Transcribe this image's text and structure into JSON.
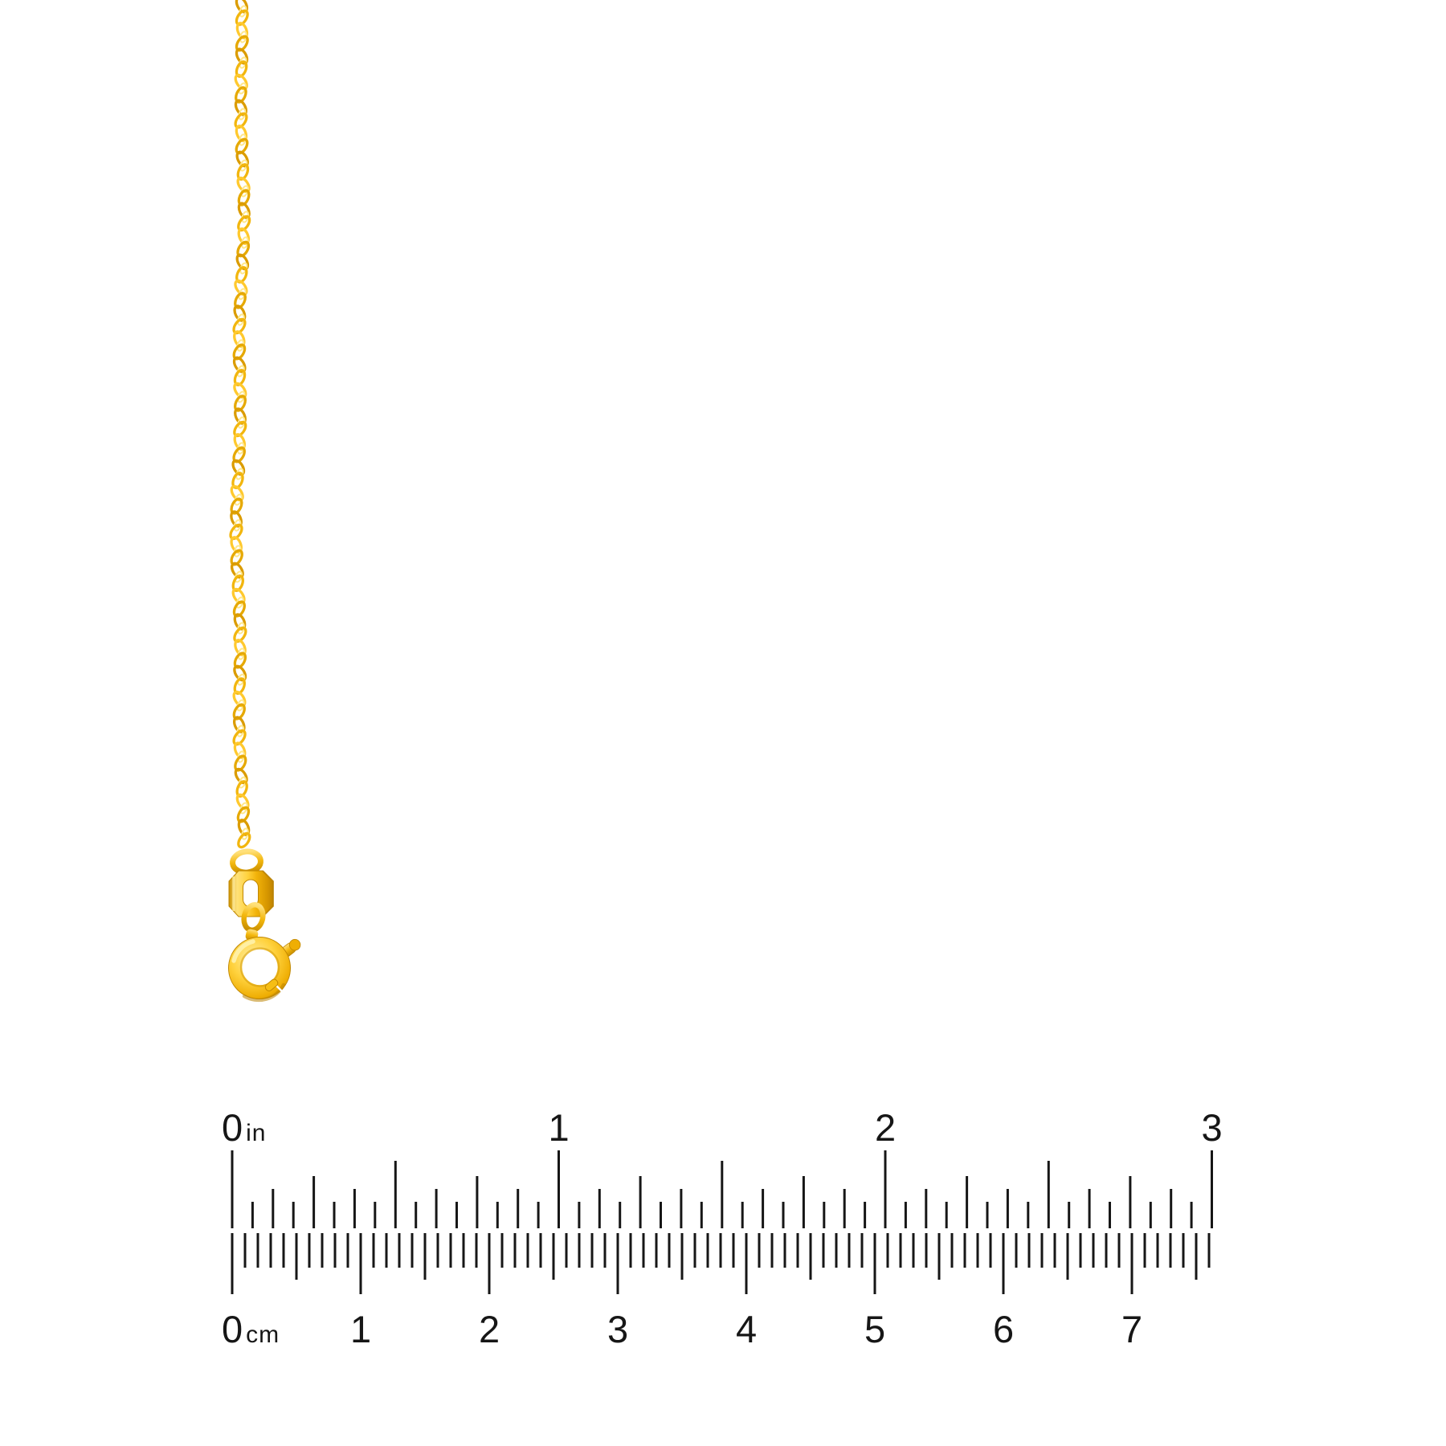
{
  "background_color": "#ffffff",
  "item": {
    "name": "gold rope chain necklace with spring ring clasp",
    "parts": [
      {
        "name": "rope-chain"
      },
      {
        "name": "jump-ring-top"
      },
      {
        "name": "connector-link"
      },
      {
        "name": "jump-ring-bottom"
      },
      {
        "name": "spring-ring-clasp"
      }
    ],
    "colors": {
      "gold_highlight": "#FFE88C",
      "gold_light": "#FFD23E",
      "gold_base": "#F2B60E",
      "gold_deep": "#DB9C00",
      "gold_shadow": "#C08700",
      "chain_palette": [
        "#DB9C00",
        "#F2B60E",
        "#FFC92E",
        "#E6A904"
      ]
    }
  },
  "ruler": {
    "ink_color": "#161616",
    "inch_scale": {
      "unit_label": "in",
      "labels": [
        "0",
        "1",
        "2",
        "3"
      ],
      "max_value": 3,
      "minor_ticks_per_unit": 16
    },
    "cm_scale": {
      "unit_label": "cm",
      "labels": [
        "0",
        "1",
        "2",
        "3",
        "4",
        "5",
        "6",
        "7"
      ],
      "max_value": 7.6,
      "minor_ticks_per_unit": 10
    }
  }
}
